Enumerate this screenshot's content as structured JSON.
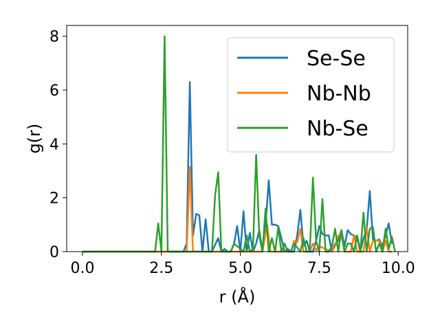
{
  "chart_data": {
    "type": "line",
    "xlabel": "r (Å)",
    "ylabel": "g(r)",
    "xlim": [
      -0.5,
      10.3
    ],
    "ylim": [
      0,
      8.4
    ],
    "xticks": [
      0.0,
      2.5,
      5.0,
      7.5,
      10.0
    ],
    "xtick_labels": [
      "0.0",
      "2.5",
      "5.0",
      "7.5",
      "10.0"
    ],
    "yticks": [
      0,
      2,
      4,
      6,
      8
    ],
    "ytick_labels": [
      "0",
      "2",
      "4",
      "6",
      "8"
    ],
    "grid": false,
    "legend": "top-right",
    "series": [
      {
        "name": "Se-Se",
        "color": "#1f77b4",
        "x": [
          0,
          3.2,
          3.3,
          3.4,
          3.5,
          3.6,
          3.7,
          3.8,
          3.9,
          4.0,
          4.1,
          4.3,
          4.4,
          4.5,
          4.6,
          4.7,
          4.8,
          4.9,
          5.0,
          5.1,
          5.2,
          5.3,
          5.4,
          5.5,
          5.6,
          5.7,
          5.8,
          5.9,
          6.0,
          6.1,
          6.2,
          6.3,
          6.4,
          6.5,
          6.6,
          6.7,
          6.8,
          6.9,
          7.0,
          7.1,
          7.2,
          7.3,
          7.4,
          7.5,
          7.6,
          7.7,
          7.8,
          7.9,
          8.0,
          8.1,
          8.2,
          8.3,
          8.4,
          8.5,
          8.6,
          8.7,
          8.8,
          8.9,
          9.0,
          9.1,
          9.2,
          9.3,
          9.4,
          9.5,
          9.6,
          9.7,
          9.8
        ],
        "values": [
          0,
          0,
          0.3,
          6.3,
          0.6,
          1.4,
          1.35,
          0,
          1.2,
          0,
          0,
          0.5,
          0,
          0.1,
          0,
          0,
          0.3,
          0.95,
          0,
          1.5,
          0,
          0.7,
          0,
          0.3,
          0.8,
          0,
          1.0,
          2.65,
          1.0,
          1.0,
          0.95,
          0.5,
          0,
          0.1,
          0,
          0,
          0.6,
          1.55,
          0.2,
          0.4,
          0,
          0,
          0.4,
          0.95,
          0.65,
          0.6,
          0.6,
          0,
          0.3,
          0.4,
          0.8,
          0.2,
          0.8,
          0.65,
          0.6,
          0.5,
          0,
          0.5,
          0.8,
          2.25,
          0.45,
          0.4,
          0.45,
          0.2,
          0.6,
          1.05,
          0.3
        ],
        "label": "Se-Se"
      },
      {
        "name": "Nb-Nb",
        "color": "#ff7f0e",
        "x": [
          0,
          3.3,
          3.4,
          3.5,
          5.7,
          5.85,
          5.95,
          6.6,
          6.7,
          6.8,
          6.9,
          7.0,
          7.2,
          7.3,
          7.4,
          7.5,
          7.9,
          8.0,
          8.1,
          8.2,
          8.3,
          8.5,
          8.6,
          8.7,
          8.9,
          9.0,
          9.1,
          9.2,
          9.4,
          9.5,
          9.6,
          9.7,
          9.8
        ],
        "values": [
          0,
          0,
          3.15,
          0,
          0,
          1.0,
          0,
          0,
          0.4,
          0.35,
          0.85,
          0,
          0,
          0.3,
          0.05,
          0.2,
          0,
          0.2,
          0.6,
          0.6,
          0,
          0,
          0.6,
          0,
          0,
          0.9,
          0,
          0.4,
          0.4,
          0,
          0.4,
          0,
          0
        ],
        "label": "Nb-Nb"
      },
      {
        "name": "Nb-Se",
        "color": "#2ca02c",
        "x": [
          0,
          2.3,
          2.4,
          2.5,
          2.6,
          2.7,
          3.2,
          4.1,
          4.2,
          4.3,
          4.4,
          4.6,
          4.7,
          4.8,
          4.9,
          5.0,
          5.1,
          5.2,
          5.3,
          5.4,
          5.5,
          5.6,
          5.7,
          5.8,
          5.9,
          6.0,
          6.1,
          6.2,
          6.3,
          6.4,
          6.5,
          6.6,
          6.7,
          6.8,
          6.9,
          7.0,
          7.1,
          7.2,
          7.3,
          7.4,
          7.5,
          7.6,
          7.7,
          7.8,
          7.9,
          8.0,
          8.1,
          8.2,
          8.3,
          8.4,
          8.5,
          8.6,
          8.7,
          8.8,
          8.9,
          9.0,
          9.1,
          9.2,
          9.3,
          9.4,
          9.5,
          9.6,
          9.7,
          9.8,
          9.9
        ],
        "values": [
          0,
          0,
          1.05,
          0,
          8.0,
          0,
          0,
          0,
          2.1,
          2.95,
          0,
          0,
          0,
          0.3,
          0.2,
          0.1,
          0,
          0.6,
          0,
          0.1,
          3.6,
          0.6,
          0,
          1.6,
          0,
          0.5,
          0,
          0.9,
          0,
          0.3,
          0,
          0,
          0.3,
          0.15,
          0,
          0.5,
          0,
          0,
          2.75,
          0.4,
          0,
          1.95,
          0,
          0,
          0.2,
          0.85,
          0,
          0.8,
          0,
          0.3,
          0.3,
          0,
          0.6,
          0,
          1.45,
          0,
          0.85,
          0.9,
          0,
          0.3,
          0,
          0.85,
          0.1,
          0.55,
          0
        ],
        "label": "Nb-Se"
      }
    ]
  }
}
